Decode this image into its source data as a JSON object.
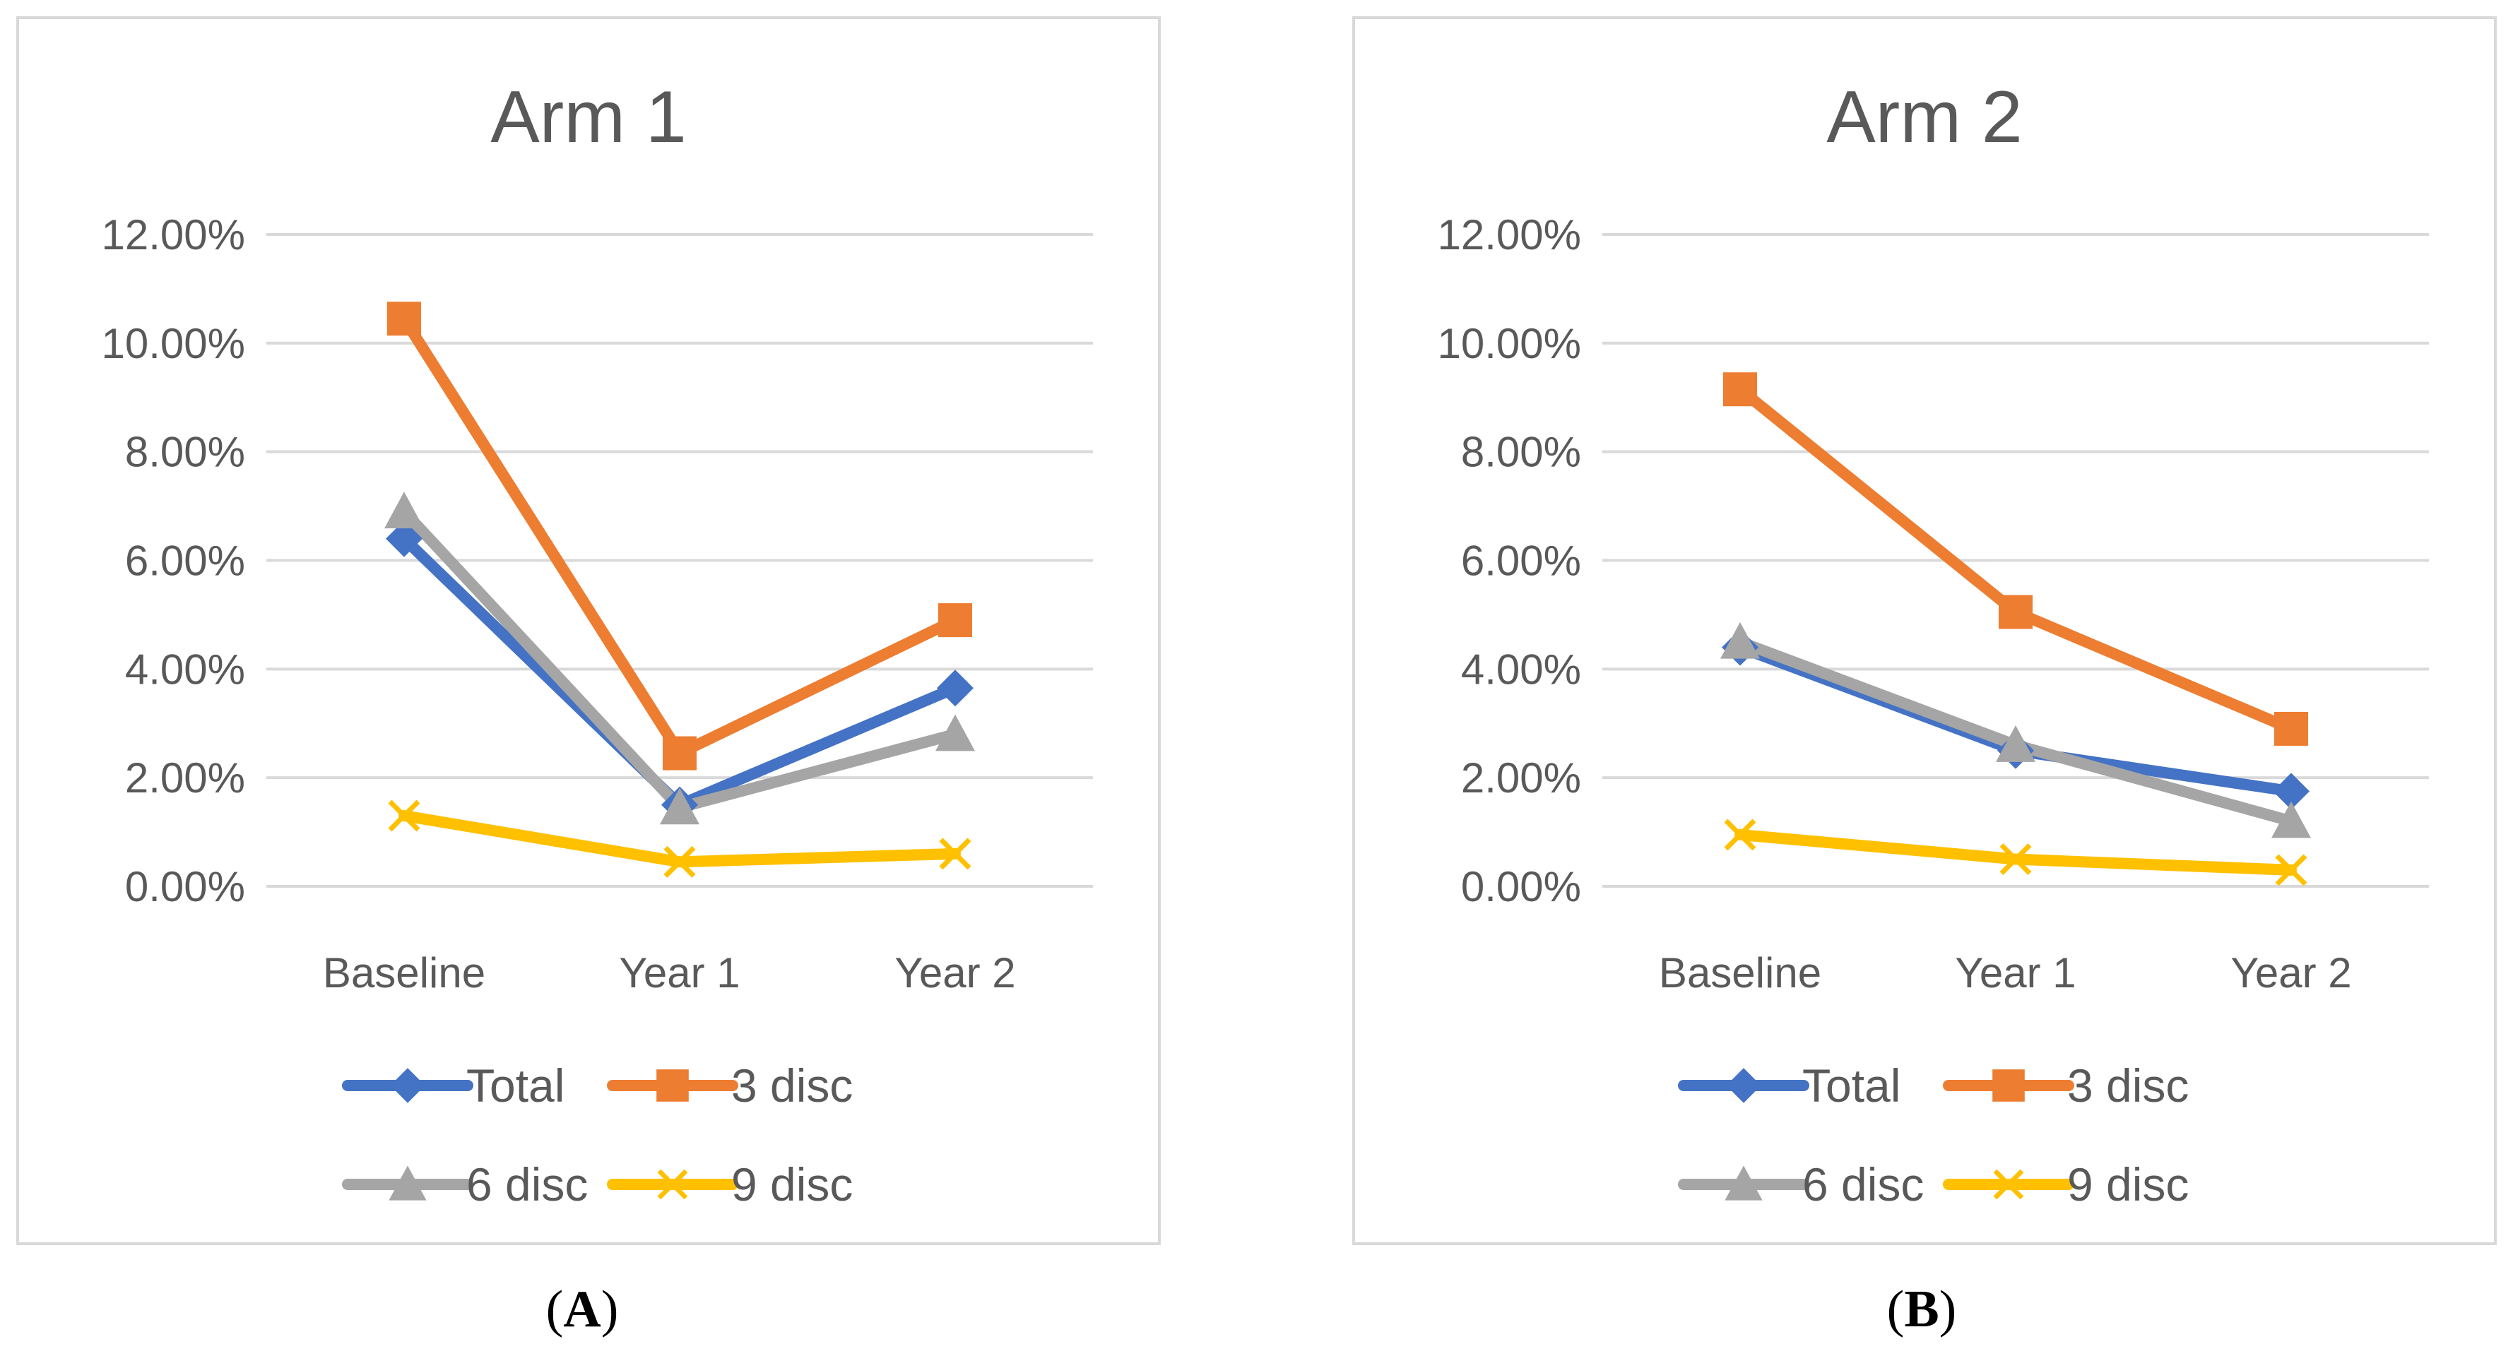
{
  "colors": {
    "Total": "#4472c4",
    "3 disc": "#ed7d31",
    "6 disc": "#a5a5a5",
    "9 disc": "#ffc000",
    "grid": "#d9d9d9",
    "text": "#595959"
  },
  "chart_data": [
    {
      "type": "line",
      "title": "Arm 1",
      "panel_label": "A",
      "categories": [
        "Baseline",
        "Year 1",
        "Year 2"
      ],
      "ylim": [
        0,
        12
      ],
      "yticks": [
        "0.00%",
        "2.00%",
        "4.00%",
        "6.00%",
        "8.00%",
        "10.00%",
        "12.00%"
      ],
      "xlabel": "",
      "ylabel": "",
      "legend_position": "bottom",
      "series": [
        {
          "name": "Total",
          "marker": "diamond",
          "values": [
            6.4,
            1.5,
            3.65
          ]
        },
        {
          "name": "3 disc",
          "marker": "square",
          "values": [
            10.45,
            2.45,
            4.9
          ]
        },
        {
          "name": "6 disc",
          "marker": "triangle",
          "values": [
            6.9,
            1.45,
            2.8
          ]
        },
        {
          "name": "9 disc",
          "marker": "x",
          "values": [
            1.3,
            0.45,
            0.6
          ]
        }
      ]
    },
    {
      "type": "line",
      "title": "Arm 2",
      "panel_label": "B",
      "categories": [
        "Baseline",
        "Year 1",
        "Year 2"
      ],
      "ylim": [
        0,
        12
      ],
      "yticks": [
        "0.00%",
        "2.00%",
        "4.00%",
        "6.00%",
        "8.00%",
        "10.00%",
        "12.00%"
      ],
      "xlabel": "",
      "ylabel": "",
      "legend_position": "bottom",
      "series": [
        {
          "name": "Total",
          "marker": "diamond",
          "values": [
            4.4,
            2.5,
            1.75
          ]
        },
        {
          "name": "3 disc",
          "marker": "square",
          "values": [
            9.15,
            5.05,
            2.9
          ]
        },
        {
          "name": "6 disc",
          "marker": "triangle",
          "values": [
            4.5,
            2.6,
            1.2
          ]
        },
        {
          "name": "9 disc",
          "marker": "x",
          "values": [
            0.95,
            0.5,
            0.3
          ]
        }
      ]
    }
  ]
}
